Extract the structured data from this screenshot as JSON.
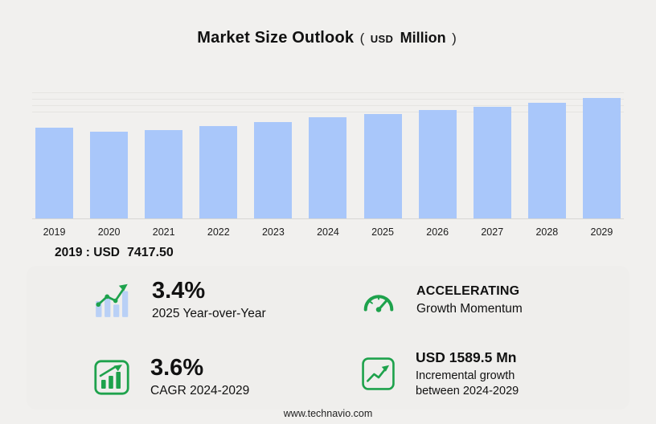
{
  "title": {
    "main": "Market Size Outlook",
    "open_paren": "(",
    "currency": "USD",
    "unit": "Million",
    "close_paren": ")"
  },
  "chart_data": {
    "type": "bar",
    "title": "Market Size Outlook (USD Million)",
    "unit": "USD Million",
    "categories": [
      "2019",
      "2020",
      "2021",
      "2022",
      "2023",
      "2024",
      "2025",
      "2026",
      "2027",
      "2028",
      "2029"
    ],
    "values": [
      7417.5,
      7090,
      7220,
      7550,
      7860,
      8215,
      8494,
      8800,
      9117,
      9445,
      9806
    ],
    "labeled_values": {
      "2019": 7417.5
    },
    "ylim": [
      0,
      10000
    ],
    "y_axis_labels_visible": false,
    "grid": "faint horizontal gridlines near top of plot",
    "legend": "none",
    "bar_color": "#a9c7fa"
  },
  "callout": {
    "label": "2019 : USD",
    "value": "7417.50"
  },
  "stats": {
    "yoy": {
      "icon": "bar-chart-trend-icon",
      "value": "3.4%",
      "label": "2025 Year-over-Year"
    },
    "momentum": {
      "icon": "speedometer-icon",
      "value": "ACCELERATING",
      "label": "Growth Momentum"
    },
    "cagr": {
      "icon": "growth-bars-icon",
      "value": "3.6%",
      "label": "CAGR 2024-2029"
    },
    "incremental": {
      "icon": "line-growth-icon",
      "value": "USD 1589.5 Mn",
      "label": "Incremental growth",
      "label2": "between 2024-2029"
    }
  },
  "footer": {
    "url": "www.technavio.com"
  },
  "colors": {
    "background": "#f1f0ee",
    "bar_blue": "#a9c7fa",
    "accent_green": "#1ea24c",
    "text": "#111111"
  }
}
